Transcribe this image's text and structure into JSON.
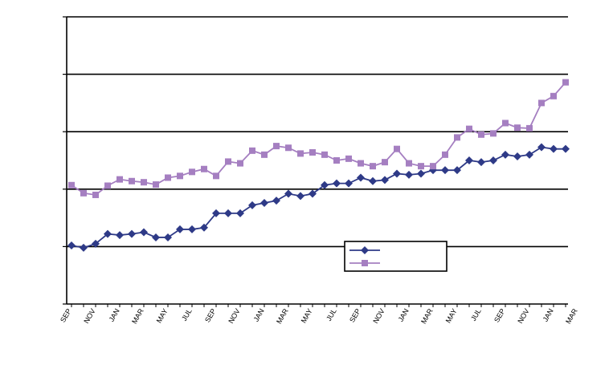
{
  "chart_data": {
    "type": "line",
    "title": "",
    "xlabel": "",
    "ylabel": "",
    "ylim": [
      0,
      5
    ],
    "grid": "horizontal",
    "legend": "bottom-right inside plot, entries unlabeled",
    "x_tick_labels": [
      "SEP",
      "NOV",
      "JAN",
      "MAR",
      "MAY",
      "JUL",
      "SEP",
      "NOV",
      "JAN",
      "MAR",
      "MAY",
      "JUL",
      "SEP",
      "NOV",
      "JAN",
      "MAR",
      "MAY",
      "JUL",
      "SEP",
      "NOV",
      "JAN",
      "MAR"
    ],
    "series": [
      {
        "color": "#2E3A87",
        "marker": "diamond",
        "values": [
          1.02,
          0.98,
          1.05,
          1.22,
          1.2,
          1.22,
          1.25,
          1.16,
          1.16,
          1.3,
          1.3,
          1.33,
          1.58,
          1.58,
          1.58,
          1.72,
          1.76,
          1.8,
          1.92,
          1.88,
          1.92,
          2.07,
          2.1,
          2.1,
          2.2,
          2.14,
          2.16,
          2.27,
          2.25,
          2.27,
          2.33,
          2.33,
          2.33,
          2.5,
          2.47,
          2.5,
          2.6,
          2.57,
          2.6,
          2.73,
          2.7,
          2.7
        ]
      },
      {
        "color": "#A57FC1",
        "marker": "square",
        "values": [
          2.07,
          1.93,
          1.9,
          2.06,
          2.17,
          2.14,
          2.12,
          2.08,
          2.2,
          2.23,
          2.3,
          2.35,
          2.23,
          2.48,
          2.45,
          2.67,
          2.6,
          2.75,
          2.72,
          2.62,
          2.64,
          2.6,
          2.5,
          2.53,
          2.45,
          2.4,
          2.47,
          2.7,
          2.45,
          2.4,
          2.4,
          2.6,
          2.9,
          3.05,
          2.95,
          2.97,
          3.15,
          3.07,
          3.06,
          3.5,
          3.62,
          3.86
        ]
      }
    ]
  }
}
